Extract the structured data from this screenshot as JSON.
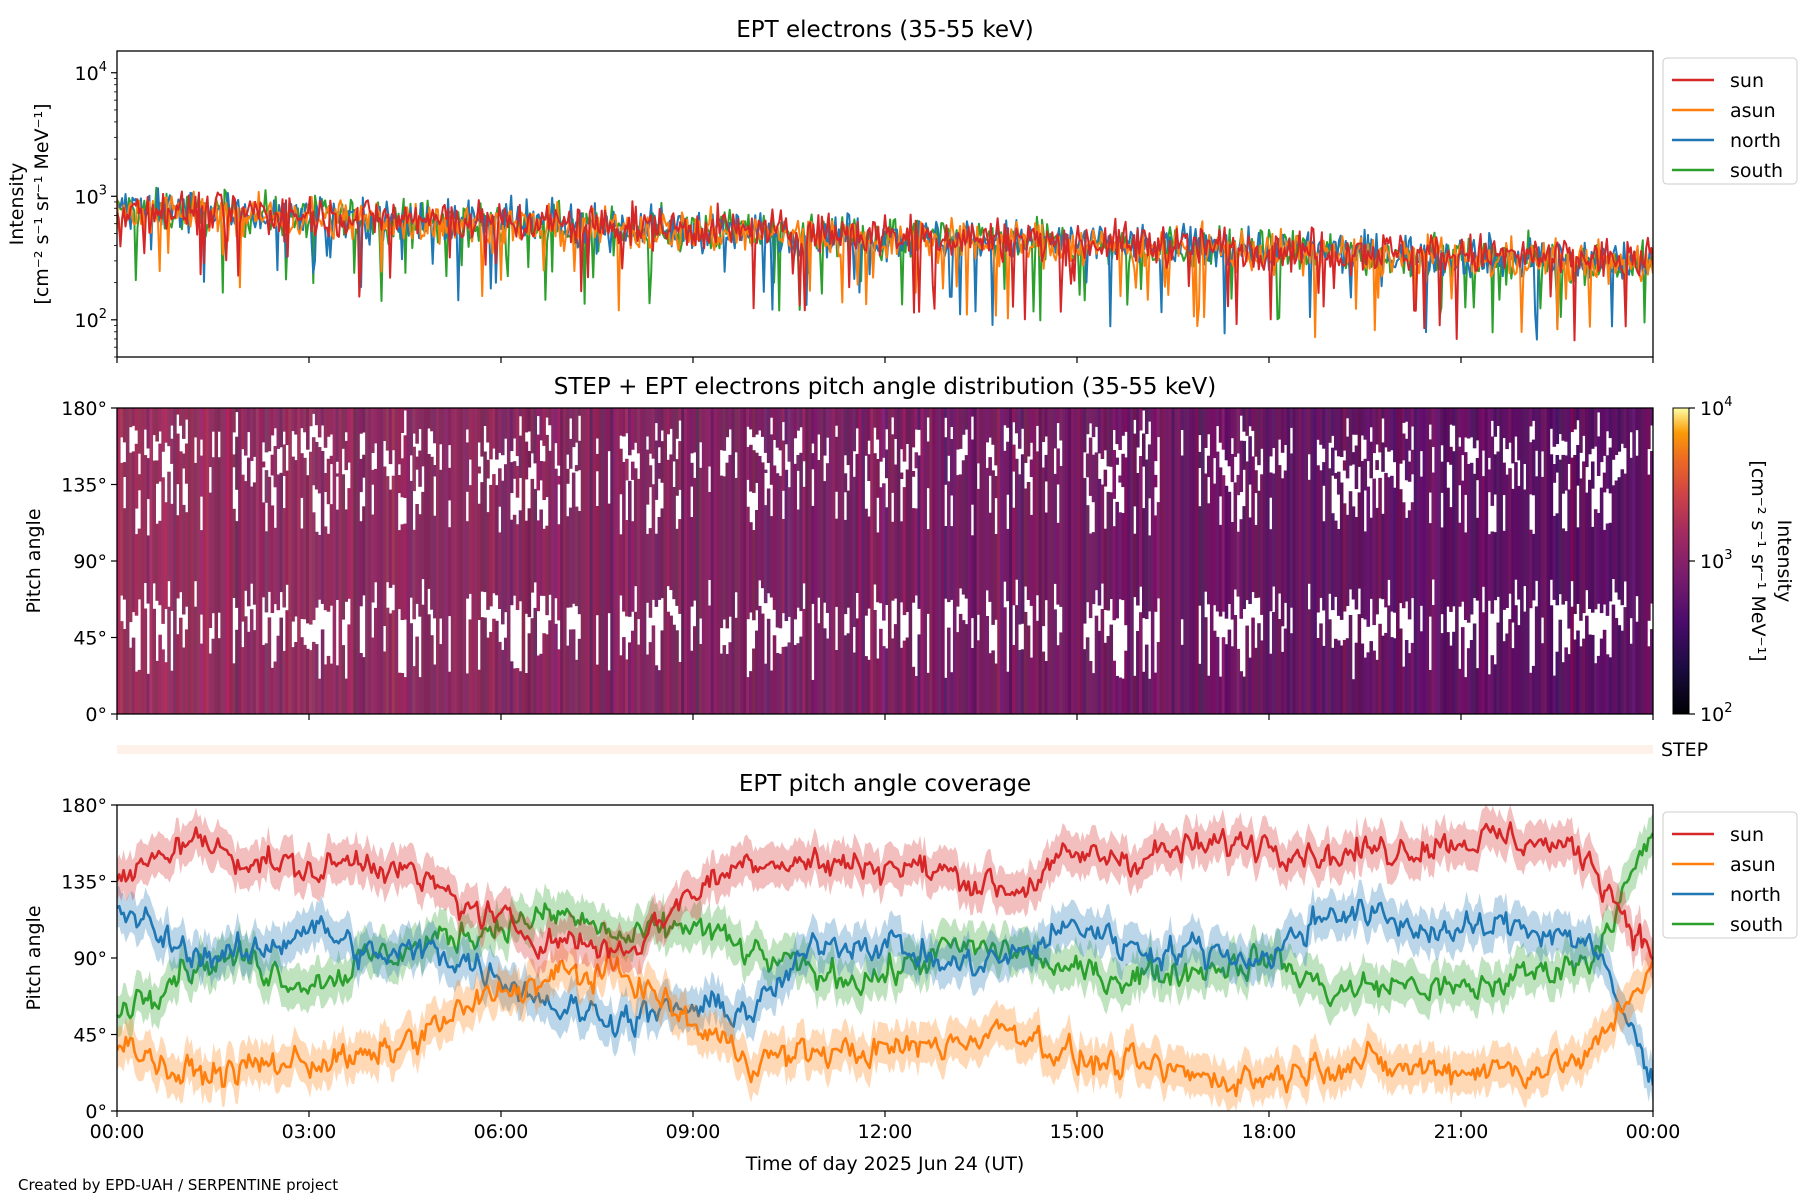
{
  "figure": {
    "credit": "Created by EPD-UAH / SERPENTINE project",
    "xlabel": "Time of day 2025 Jun 24 (UT)",
    "time_ticks": [
      "00:00",
      "03:00",
      "06:00",
      "09:00",
      "12:00",
      "15:00",
      "18:00",
      "21:00",
      "00:00"
    ]
  },
  "series_colors": {
    "sun": "#d62728",
    "asun": "#ff7f0e",
    "north": "#1f77b4",
    "south": "#2ca02c"
  },
  "chart_data": [
    {
      "type": "line",
      "title": "EPT electrons (35-55 keV)",
      "ylabel": "Intensity",
      "yunit": "[cm⁻² s⁻¹ sr⁻¹ MeV⁻¹]",
      "yscale": "log",
      "ylim": [
        50,
        15000
      ],
      "yticks": [
        {
          "value": 100,
          "label": "10",
          "exp": "2"
        },
        {
          "value": 1000,
          "label": "10",
          "exp": "3"
        },
        {
          "value": 10000,
          "label": "10",
          "exp": "4"
        }
      ],
      "x_range_hours": [
        0,
        24
      ],
      "legend": {
        "placement": "upper-right-outside",
        "entries": [
          "sun",
          "asun",
          "north",
          "south"
        ]
      },
      "series": [
        {
          "name": "sun",
          "trend": {
            "x": [
              0,
              6,
              12,
              18,
              24
            ],
            "y": [
              800,
              620,
              480,
              380,
              300
            ]
          }
        },
        {
          "name": "asun",
          "trend": {
            "x": [
              0,
              6,
              12,
              18,
              24
            ],
            "y": [
              760,
              580,
              450,
              350,
              280
            ]
          }
        },
        {
          "name": "north",
          "trend": {
            "x": [
              0,
              6,
              12,
              18,
              24
            ],
            "y": [
              780,
              600,
              470,
              370,
              290
            ]
          }
        },
        {
          "name": "south",
          "trend": {
            "x": [
              0,
              6,
              12,
              18,
              24
            ],
            "y": [
              770,
              590,
              460,
              360,
              280
            ]
          }
        }
      ]
    },
    {
      "type": "heatmap",
      "title": "STEP + EPT electrons pitch angle distribution (35-55 keV)",
      "ylabel": "Pitch angle",
      "ylim": [
        0,
        180
      ],
      "yticks": [
        "0°",
        "45°",
        "90°",
        "135°",
        "180°"
      ],
      "x_range_hours": [
        0,
        24
      ],
      "colorbar": {
        "label": "Intensity",
        "unit": "[cm⁻² s⁻¹ sr⁻¹ MeV⁻¹]",
        "scale": "log",
        "range": [
          100,
          10000
        ],
        "ticks": [
          {
            "label": "10",
            "exp": "2"
          },
          {
            "label": "10",
            "exp": "3"
          },
          {
            "label": "10",
            "exp": "4"
          }
        ],
        "colormap": "inferno"
      },
      "step_label": "STEP"
    },
    {
      "type": "line",
      "title": "EPT pitch angle coverage",
      "ylabel": "Pitch angle",
      "ylim": [
        0,
        180
      ],
      "yticks": [
        "0°",
        "45°",
        "90°",
        "135°",
        "180°"
      ],
      "x_range_hours": [
        0,
        24
      ],
      "legend": {
        "placement": "upper-right-outside",
        "entries": [
          "sun",
          "asun",
          "north",
          "south"
        ]
      },
      "series": [
        {
          "name": "sun",
          "x": [
            0,
            1,
            2,
            3,
            4,
            5,
            6,
            7,
            8,
            9,
            10,
            11,
            12,
            13,
            14,
            15,
            16,
            17,
            18,
            19,
            20,
            21,
            22,
            23,
            24
          ],
          "y": [
            130,
            160,
            150,
            140,
            150,
            130,
            110,
            100,
            95,
            130,
            150,
            145,
            145,
            140,
            130,
            150,
            150,
            155,
            160,
            150,
            155,
            160,
            160,
            150,
            90
          ]
        },
        {
          "name": "asun",
          "x": [
            0,
            1,
            2,
            3,
            4,
            5,
            6,
            7,
            8,
            9,
            10,
            11,
            12,
            13,
            14,
            15,
            16,
            17,
            18,
            19,
            20,
            21,
            22,
            23,
            24
          ],
          "y": [
            45,
            20,
            25,
            30,
            30,
            50,
            70,
            80,
            80,
            50,
            30,
            35,
            35,
            40,
            50,
            30,
            25,
            20,
            20,
            30,
            25,
            25,
            25,
            30,
            90
          ]
        },
        {
          "name": "north",
          "x": [
            0,
            1,
            2,
            3,
            4,
            5,
            6,
            7,
            8,
            9,
            10,
            11,
            12,
            13,
            14,
            15,
            16,
            17,
            18,
            19,
            20,
            21,
            22,
            23,
            24
          ],
          "y": [
            120,
            95,
            90,
            110,
            90,
            95,
            80,
            60,
            55,
            60,
            60,
            100,
            100,
            85,
            90,
            110,
            95,
            95,
            90,
            120,
            110,
            105,
            110,
            100,
            20
          ]
        },
        {
          "name": "south",
          "x": [
            0,
            1,
            2,
            3,
            4,
            5,
            6,
            7,
            8,
            9,
            10,
            11,
            12,
            13,
            14,
            15,
            16,
            17,
            18,
            19,
            20,
            21,
            22,
            23,
            24
          ],
          "y": [
            60,
            85,
            90,
            75,
            90,
            100,
            110,
            115,
            100,
            110,
            90,
            80,
            80,
            95,
            95,
            80,
            80,
            85,
            90,
            70,
            75,
            70,
            80,
            90,
            160
          ]
        }
      ]
    }
  ]
}
